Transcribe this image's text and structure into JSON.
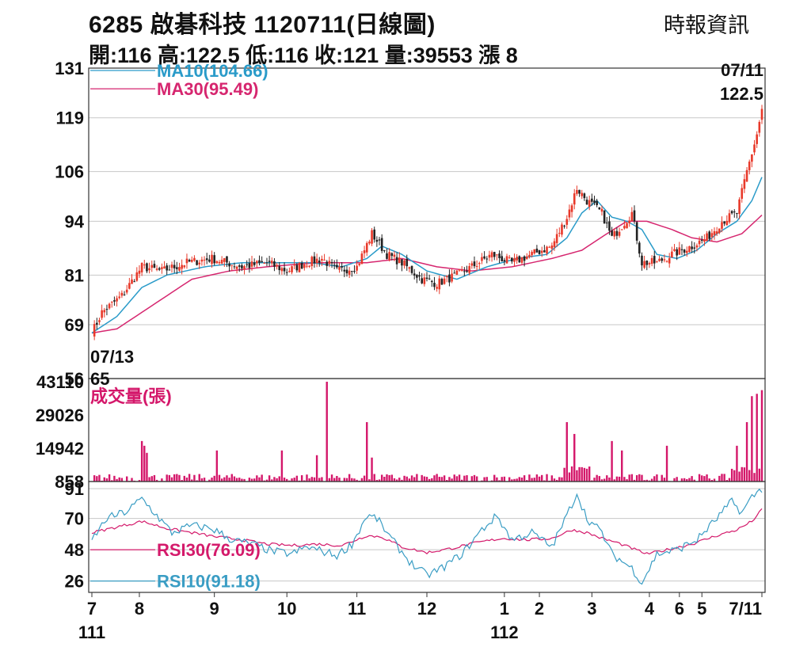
{
  "header": {
    "title": "6285  啟碁科技 1120711(日線圖)",
    "ohlc": "開:116 高:122.5 低:116 收:121 量:39553 漲 8",
    "source": "時報資訊"
  },
  "colors": {
    "up": "#e8392a",
    "down": "#222222",
    "ma10": "#2a9bc9",
    "ma30": "#d6266f",
    "volume": "#d4176a",
    "rsi10": "#3a9dc4",
    "rsi30": "#d41a6b",
    "grid": "#c7c7c7"
  },
  "chart_data": [
    {
      "type": "candlestick",
      "panel": "price",
      "y_ticks": [
        131,
        119,
        106,
        94,
        81,
        69,
        56
      ],
      "ylim": [
        56,
        131
      ],
      "x_ticks": [
        "7",
        "8",
        "9",
        "10",
        "11",
        "12",
        "1",
        "2",
        "3",
        "4",
        "5",
        "6",
        "7/11"
      ],
      "x_year_labels": [
        {
          "label": "111",
          "at": "7"
        },
        {
          "label": "112",
          "at": "1"
        }
      ],
      "legend": [
        {
          "key": "ma10",
          "label": "MA10(104.66)"
        },
        {
          "key": "ma30",
          "label": "MA30(95.49)"
        }
      ],
      "annotations": [
        {
          "label": "07/11",
          "value_label": "122.5"
        },
        {
          "label": "07/13",
          "value_label": "65"
        }
      ],
      "close_anchors": [
        [
          0,
          67
        ],
        [
          4,
          72
        ],
        [
          12,
          76
        ],
        [
          20,
          83
        ],
        [
          28,
          82
        ],
        [
          38,
          84
        ],
        [
          48,
          85
        ],
        [
          60,
          83
        ],
        [
          70,
          84
        ],
        [
          78,
          82
        ],
        [
          86,
          84
        ],
        [
          92,
          85
        ],
        [
          98,
          82
        ],
        [
          106,
          83
        ],
        [
          112,
          91
        ],
        [
          118,
          86
        ],
        [
          124,
          84
        ],
        [
          132,
          80
        ],
        [
          138,
          79
        ],
        [
          146,
          81
        ],
        [
          152,
          83
        ],
        [
          160,
          86
        ],
        [
          168,
          84
        ],
        [
          176,
          86
        ],
        [
          184,
          88
        ],
        [
          190,
          95
        ],
        [
          194,
          102
        ],
        [
          198,
          99
        ],
        [
          204,
          96
        ],
        [
          208,
          90
        ],
        [
          212,
          93
        ],
        [
          216,
          96
        ],
        [
          220,
          84
        ],
        [
          226,
          84
        ],
        [
          232,
          86
        ],
        [
          240,
          88
        ],
        [
          246,
          90
        ],
        [
          252,
          94
        ],
        [
          258,
          96
        ],
        [
          262,
          106
        ],
        [
          266,
          115
        ],
        [
          268,
          121
        ]
      ],
      "ma10": [
        [
          0,
          67
        ],
        [
          10,
          71
        ],
        [
          20,
          78
        ],
        [
          30,
          81
        ],
        [
          45,
          83
        ],
        [
          60,
          84
        ],
        [
          75,
          84
        ],
        [
          88,
          84
        ],
        [
          100,
          83
        ],
        [
          110,
          85
        ],
        [
          116,
          88
        ],
        [
          124,
          86
        ],
        [
          134,
          82
        ],
        [
          146,
          80
        ],
        [
          158,
          83
        ],
        [
          170,
          85
        ],
        [
          182,
          86
        ],
        [
          190,
          90
        ],
        [
          196,
          96
        ],
        [
          202,
          99
        ],
        [
          208,
          95
        ],
        [
          214,
          94
        ],
        [
          220,
          92
        ],
        [
          226,
          86
        ],
        [
          234,
          85
        ],
        [
          242,
          87
        ],
        [
          250,
          91
        ],
        [
          258,
          94
        ],
        [
          264,
          99
        ],
        [
          268,
          104.66
        ]
      ],
      "ma30": [
        [
          0,
          67
        ],
        [
          10,
          68
        ],
        [
          20,
          72
        ],
        [
          30,
          76
        ],
        [
          40,
          80
        ],
        [
          55,
          82
        ],
        [
          70,
          83
        ],
        [
          90,
          84
        ],
        [
          110,
          84
        ],
        [
          124,
          85
        ],
        [
          138,
          83
        ],
        [
          152,
          82
        ],
        [
          168,
          83
        ],
        [
          184,
          85
        ],
        [
          196,
          87
        ],
        [
          206,
          91
        ],
        [
          214,
          94
        ],
        [
          222,
          94
        ],
        [
          232,
          92
        ],
        [
          240,
          90
        ],
        [
          250,
          89
        ],
        [
          260,
          91
        ],
        [
          268,
          95.49
        ]
      ]
    },
    {
      "type": "bar",
      "panel": "volume",
      "title": "成交量(張)",
      "y_ticks": [
        43110,
        29026,
        14942,
        858
      ],
      "ylim": [
        858,
        43110
      ],
      "spikes": [
        [
          20,
          18000
        ],
        [
          21,
          16000
        ],
        [
          22,
          13000
        ],
        [
          50,
          14000
        ],
        [
          76,
          14000
        ],
        [
          90,
          12000
        ],
        [
          94,
          43110
        ],
        [
          110,
          26000
        ],
        [
          112,
          11000
        ],
        [
          190,
          26000
        ],
        [
          193,
          21000
        ],
        [
          208,
          18000
        ],
        [
          212,
          14000
        ],
        [
          230,
          16000
        ],
        [
          258,
          16000
        ],
        [
          262,
          26000
        ],
        [
          264,
          37000
        ],
        [
          266,
          38000
        ],
        [
          268,
          39553
        ]
      ]
    },
    {
      "type": "line",
      "panel": "rsi",
      "y_ticks": [
        91,
        70,
        48,
        26
      ],
      "ylim": [
        18,
        96
      ],
      "legend": [
        {
          "key": "rsi30",
          "label": "RSI30(76.09)"
        },
        {
          "key": "rsi10",
          "label": "RSI10(91.18)"
        }
      ],
      "rsi10": [
        [
          0,
          55
        ],
        [
          6,
          70
        ],
        [
          14,
          75
        ],
        [
          20,
          84
        ],
        [
          26,
          72
        ],
        [
          32,
          60
        ],
        [
          40,
          65
        ],
        [
          48,
          63
        ],
        [
          56,
          55
        ],
        [
          64,
          52
        ],
        [
          72,
          47
        ],
        [
          80,
          45
        ],
        [
          86,
          50
        ],
        [
          92,
          47
        ],
        [
          98,
          44
        ],
        [
          104,
          52
        ],
        [
          110,
          72
        ],
        [
          114,
          70
        ],
        [
          120,
          55
        ],
        [
          128,
          38
        ],
        [
          134,
          30
        ],
        [
          140,
          35
        ],
        [
          148,
          45
        ],
        [
          156,
          62
        ],
        [
          162,
          72
        ],
        [
          168,
          55
        ],
        [
          176,
          60
        ],
        [
          184,
          50
        ],
        [
          190,
          72
        ],
        [
          194,
          88
        ],
        [
          198,
          70
        ],
        [
          204,
          60
        ],
        [
          208,
          45
        ],
        [
          212,
          40
        ],
        [
          216,
          35
        ],
        [
          220,
          25
        ],
        [
          226,
          45
        ],
        [
          234,
          48
        ],
        [
          242,
          55
        ],
        [
          250,
          70
        ],
        [
          256,
          82
        ],
        [
          260,
          74
        ],
        [
          264,
          85
        ],
        [
          268,
          91.18
        ]
      ],
      "rsi30": [
        [
          0,
          60
        ],
        [
          10,
          64
        ],
        [
          20,
          68
        ],
        [
          30,
          63
        ],
        [
          40,
          60
        ],
        [
          50,
          57
        ],
        [
          60,
          55
        ],
        [
          70,
          52
        ],
        [
          80,
          51
        ],
        [
          90,
          52
        ],
        [
          100,
          51
        ],
        [
          110,
          58
        ],
        [
          116,
          57
        ],
        [
          124,
          50
        ],
        [
          134,
          46
        ],
        [
          144,
          49
        ],
        [
          154,
          53
        ],
        [
          164,
          56
        ],
        [
          174,
          55
        ],
        [
          184,
          56
        ],
        [
          192,
          62
        ],
        [
          198,
          60
        ],
        [
          204,
          56
        ],
        [
          210,
          53
        ],
        [
          216,
          49
        ],
        [
          222,
          45
        ],
        [
          230,
          48
        ],
        [
          240,
          52
        ],
        [
          250,
          58
        ],
        [
          258,
          62
        ],
        [
          264,
          68
        ],
        [
          268,
          76.09
        ]
      ]
    }
  ]
}
